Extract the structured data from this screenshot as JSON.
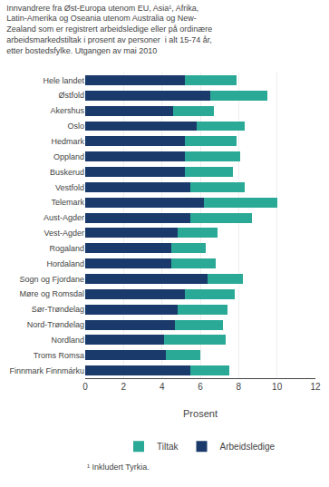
{
  "chart_data": {
    "type": "bar",
    "orientation": "horizontal",
    "stacked": true,
    "title": "Innvandrere fra Øst-Europa utenom EU, Asia¹, Afrika,\nLatin-Amerika og Oseania utenom Australia og New-\nZealand som er registrert arbeidsledige eller på ordinære\narbeidsmarkedstiltak i prosent av personer  i alt 15-74 år,\netter bostedsfylke. Utgangen av mai 2010",
    "xlabel": "Prosent",
    "categories": [
      "Hele landet",
      "Østfold",
      "Akershus",
      "Oslo",
      "Hedmark",
      "Oppland",
      "Buskerud",
      "Vestfold",
      "Telemark",
      "Aust-Agder",
      "Vest-Agder",
      "Rogaland",
      "Hordaland",
      "Sogn og Fjordane",
      "Møre og Romsdal",
      "Sør-Trøndelag",
      "Nord-Trøndelag",
      "Nordland",
      "Troms Romsa",
      "Finnmark Finnmárku"
    ],
    "series": [
      {
        "name": "Arbeidsledige",
        "color": "#1a3a6b",
        "values": [
          5.2,
          6.5,
          4.6,
          5.8,
          5.2,
          5.2,
          5.2,
          5.5,
          6.2,
          5.5,
          4.8,
          4.5,
          4.5,
          6.4,
          5.2,
          4.8,
          4.7,
          4.1,
          4.2,
          5.5
        ]
      },
      {
        "name": "Tiltak",
        "color": "#2aaa96",
        "values": [
          2.7,
          3.0,
          2.1,
          2.5,
          2.7,
          2.9,
          2.5,
          2.8,
          3.8,
          3.2,
          2.1,
          1.8,
          2.3,
          1.8,
          2.6,
          2.6,
          2.5,
          3.2,
          1.8,
          2.0
        ]
      }
    ],
    "xlim": [
      0,
      12
    ],
    "xticks": [
      0,
      2,
      4,
      6,
      8,
      10,
      12
    ],
    "grid": true,
    "legend": "bottom",
    "annotations": [
      "¹ Inkludert Tyrkia."
    ]
  }
}
